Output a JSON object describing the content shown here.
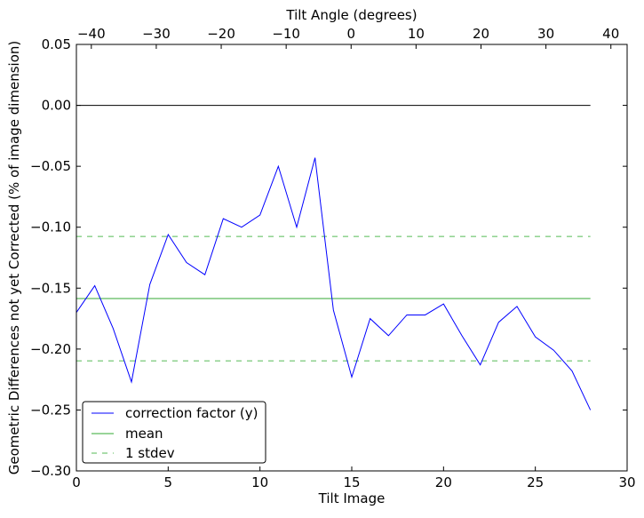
{
  "chart_data": {
    "type": "line",
    "title": "",
    "xlabel": "Tilt Image",
    "ylabel": "Geometric Differences not yet Corrected (% of image dimension)",
    "top_xlabel": "Tilt Angle (degrees)",
    "xlim": [
      0,
      30
    ],
    "ylim": [
      -0.3,
      0.05
    ],
    "top_xlim": [
      -42.3,
      42.5
    ],
    "xticks": [
      0,
      5,
      10,
      15,
      20,
      25,
      30
    ],
    "xtick_labels": [
      "0",
      "5",
      "10",
      "15",
      "20",
      "25",
      "30"
    ],
    "yticks": [
      0.05,
      0.0,
      -0.05,
      -0.1,
      -0.15,
      -0.2,
      -0.25,
      -0.3
    ],
    "ytick_labels": [
      "0.05",
      "0.00",
      "−0.05",
      "−0.10",
      "−0.15",
      "−0.20",
      "−0.25",
      "−0.30"
    ],
    "top_xticks": [
      -40,
      -30,
      -20,
      -10,
      0,
      10,
      20,
      30,
      40
    ],
    "top_xtick_labels": [
      "−40",
      "−30",
      "−20",
      "−10",
      "0",
      "10",
      "20",
      "30",
      "40"
    ],
    "grid": false,
    "legend_position": "lower-left",
    "zero_line": {
      "y": 0.0,
      "x_range": [
        0,
        28
      ],
      "color": "#000000"
    },
    "series": [
      {
        "name": "correction factor (y)",
        "color": "#0000ff",
        "style": "solid",
        "x": [
          0,
          1,
          2,
          3,
          4,
          5,
          6,
          7,
          8,
          9,
          10,
          11,
          12,
          13,
          14,
          15,
          16,
          17,
          18,
          19,
          20,
          21,
          22,
          23,
          24,
          25,
          26,
          27,
          28
        ],
        "values": [
          -0.17,
          -0.148,
          -0.183,
          -0.227,
          -0.147,
          -0.106,
          -0.129,
          -0.139,
          -0.093,
          -0.1,
          -0.09,
          -0.05,
          -0.1,
          -0.043,
          -0.168,
          -0.223,
          -0.175,
          -0.189,
          -0.172,
          -0.172,
          -0.163,
          -0.189,
          -0.213,
          -0.178,
          -0.165,
          -0.19,
          -0.201,
          -0.218,
          -0.25
        ]
      },
      {
        "name": "mean",
        "color": "#33aa33",
        "style": "solid",
        "x": [
          0,
          28
        ],
        "values": [
          -0.1585,
          -0.1585
        ]
      },
      {
        "name": "1 stdev",
        "color": "#55bb55",
        "style": "dashed",
        "x": [
          0,
          28
        ],
        "values": [
          -0.1076,
          -0.1076
        ]
      },
      {
        "name": "1 stdev (lower)",
        "color": "#55bb55",
        "style": "dashed",
        "x": [
          0,
          28
        ],
        "values": [
          -0.2097,
          -0.2097
        ],
        "in_legend": false
      }
    ]
  }
}
